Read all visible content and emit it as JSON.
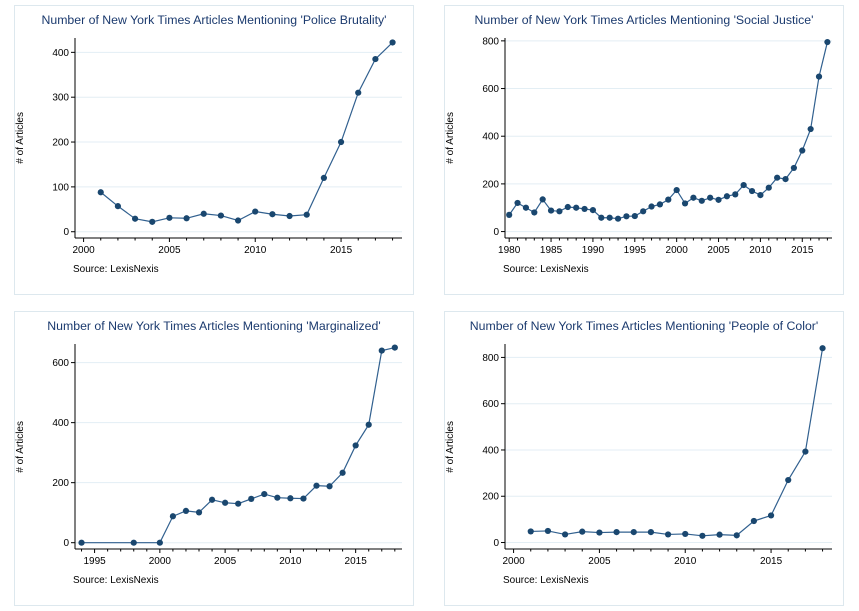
{
  "style": {
    "background": "#ffffff",
    "panel_border": "#dde8ee",
    "title_color": "#1b3a6e",
    "grid_color": "#e3eef4",
    "axis_color": "#000000",
    "accent_navy": "#1a476f"
  },
  "chart_data": [
    {
      "type": "line",
      "title": "Number of New York Times Articles Mentioning 'Police Brutality'",
      "ylabel": "# of Articles",
      "source": "Source: LexisNexis",
      "legend": "none",
      "grid": true,
      "line_color": "#31608f",
      "marker_color": "#1a476f",
      "x": [
        2001,
        2002,
        2003,
        2004,
        2005,
        2006,
        2007,
        2008,
        2009,
        2010,
        2011,
        2012,
        2013,
        2014,
        2015,
        2016,
        2017,
        2018
      ],
      "values": [
        88,
        57,
        29,
        22,
        31,
        30,
        40,
        36,
        25,
        45,
        39,
        35,
        38,
        120,
        200,
        310,
        385,
        422
      ],
      "xlim": [
        1999.5,
        2018.55
      ],
      "ylim": [
        -14,
        432
      ],
      "xticks": [
        2000,
        2005,
        2010,
        2015
      ],
      "yticks": [
        0,
        100,
        200,
        300,
        400
      ],
      "minor_xtick_step": 1
    },
    {
      "type": "line",
      "title": "Number of New York Times Articles Mentioning 'Social Justice'",
      "ylabel": "# of Articles",
      "source": "Source: LexisNexis",
      "legend": "none",
      "grid": true,
      "line_color": "#31608f",
      "marker_color": "#1a476f",
      "x": [
        1980,
        1981,
        1982,
        1983,
        1984,
        1985,
        1986,
        1987,
        1988,
        1989,
        1990,
        1991,
        1992,
        1993,
        1994,
        1995,
        1996,
        1997,
        1998,
        1999,
        2000,
        2001,
        2002,
        2003,
        2004,
        2005,
        2006,
        2007,
        2008,
        2009,
        2010,
        2011,
        2012,
        2013,
        2014,
        2015,
        2016,
        2017,
        2018
      ],
      "values": [
        70,
        120,
        100,
        80,
        135,
        88,
        85,
        103,
        100,
        95,
        90,
        58,
        58,
        54,
        64,
        65,
        85,
        105,
        114,
        134,
        174,
        118,
        142,
        129,
        142,
        133,
        148,
        156,
        195,
        170,
        153,
        184,
        226,
        220,
        267,
        340,
        430,
        650,
        795
      ],
      "xlim": [
        1979.5,
        2018.55
      ],
      "ylim": [
        -27,
        812
      ],
      "xticks": [
        1980,
        1985,
        1990,
        1995,
        2000,
        2005,
        2010,
        2015
      ],
      "yticks": [
        0,
        200,
        400,
        600,
        800
      ],
      "minor_xtick_step": 1
    },
    {
      "type": "line",
      "title": "Number of New York Times Articles Mentioning 'Marginalized'",
      "ylabel": "# of Articles",
      "source": "Source: LexisNexis",
      "legend": "none",
      "grid": true,
      "line_color": "#31608f",
      "marker_color": "#1a476f",
      "x": [
        1994,
        1998,
        2000,
        2001,
        2002,
        2003,
        2004,
        2005,
        2006,
        2007,
        2008,
        2009,
        2010,
        2011,
        2012,
        2013,
        2014,
        2015,
        2016,
        2017,
        2018
      ],
      "values": [
        0,
        0,
        0,
        88,
        106,
        101,
        143,
        133,
        130,
        146,
        162,
        150,
        148,
        147,
        190,
        188,
        233,
        324,
        393,
        640,
        650
      ],
      "xlim": [
        1993.5,
        2018.55
      ],
      "ylim": [
        -21,
        662
      ],
      "xticks": [
        1995,
        2000,
        2005,
        2010,
        2015
      ],
      "yticks": [
        0,
        200,
        400,
        600
      ],
      "minor_xtick_step": 1
    },
    {
      "type": "line",
      "title": "Number of New York Times Articles Mentioning 'People of Color'",
      "ylabel": "# of Articles",
      "source": "Source: LexisNexis",
      "legend": "none",
      "grid": true,
      "line_color": "#31608f",
      "marker_color": "#1a476f",
      "x": [
        2001,
        2002,
        2003,
        2004,
        2005,
        2006,
        2007,
        2008,
        2009,
        2010,
        2011,
        2012,
        2013,
        2014,
        2015,
        2016,
        2017,
        2018
      ],
      "values": [
        48,
        50,
        35,
        47,
        43,
        45,
        45,
        45,
        35,
        37,
        29,
        34,
        31,
        93,
        117,
        270,
        393,
        840
      ],
      "xlim": [
        1999.5,
        2018.55
      ],
      "ylim": [
        -28,
        858
      ],
      "xticks": [
        2000,
        2005,
        2010,
        2015
      ],
      "yticks": [
        0,
        200,
        400,
        600,
        800
      ],
      "minor_xtick_step": 1
    }
  ]
}
